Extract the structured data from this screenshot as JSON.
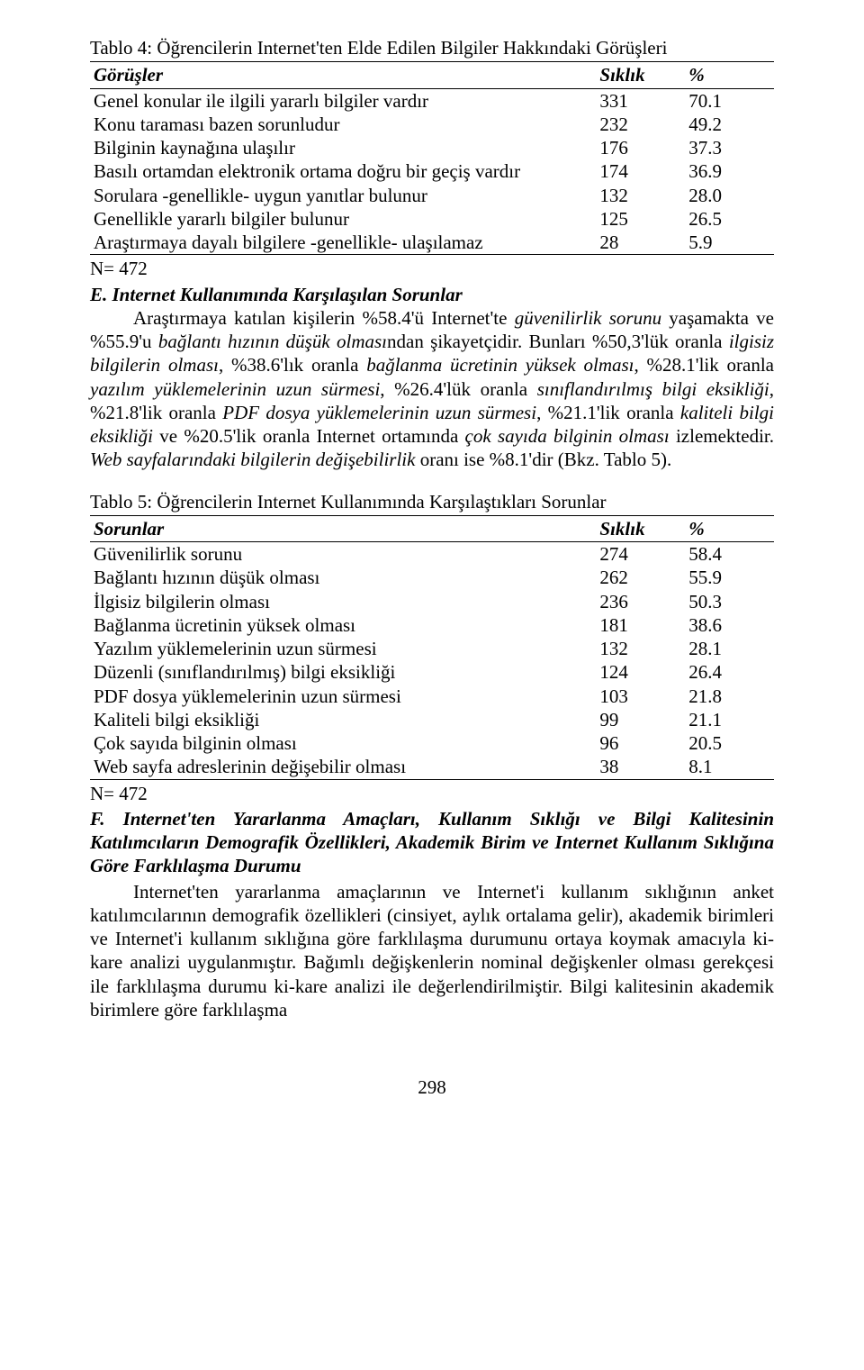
{
  "table4": {
    "title": "Tablo 4: Öğrencilerin Internet'ten Elde Edilen Bilgiler Hakkındaki Görüşleri",
    "header": {
      "col1": "Görüşler",
      "col2": "Sıklık",
      "col3": "%"
    },
    "rows": [
      {
        "label": "Genel konular ile ilgili yararlı bilgiler vardır",
        "freq": "331",
        "pct": "70.1"
      },
      {
        "label": "Konu taraması bazen sorunludur",
        "freq": "232",
        "pct": "49.2"
      },
      {
        "label": "Bilginin kaynağına ulaşılır",
        "freq": "176",
        "pct": "37.3"
      },
      {
        "label": "Basılı ortamdan elektronik ortama doğru bir geçiş vardır",
        "freq": "174",
        "pct": "36.9"
      },
      {
        "label": "Sorulara -genellikle- uygun yanıtlar bulunur",
        "freq": "132",
        "pct": "28.0"
      },
      {
        "label": "Genellikle yararlı bilgiler bulunur",
        "freq": "125",
        "pct": "26.5"
      },
      {
        "label": "Araştırmaya dayalı bilgilere -genellikle- ulaşılamaz",
        "freq": "28",
        "pct": "5.9"
      }
    ],
    "note": "N= 472"
  },
  "sectionE": {
    "heading": "E. Internet Kullanımında Karşılaşılan Sorunlar",
    "p1a": "Araştırmaya katılan kişilerin %58.4'ü Internet'te ",
    "p1b": "güvenilirlik sorunu",
    "p1c": " yaşamakta ve %55.9'u ",
    "p1d": "bağlantı hızının düşük olması",
    "p1e": "ndan şikayetçidir. Bunları %50,3'lük oranla ",
    "p1f": "ilgisiz bilgilerin olması",
    "p1g": ", %38.6'lık oranla ",
    "p1h": "bağlanma ücretinin yüksek olması",
    "p1i": ", %28.1'lik oranla ",
    "p1j": "yazılım yüklemelerinin uzun sürmesi",
    "p1k": ", %26.4'lük oranla ",
    "p1l": "sınıflandırılmış bilgi eksikliği",
    "p1m": ", %21.8'lik oranla ",
    "p1n": "PDF dosya yüklemelerinin uzun sürmesi",
    "p1o": ", %21.1'lik oranla ",
    "p1p": "kaliteli bilgi eksikliği",
    "p1q": " ve %20.5'lik oranla Internet ortamında ",
    "p1r": "çok sayıda bilginin olması",
    "p1s": " izlemektedir. ",
    "p1t": "Web sayfalarındaki bilgilerin değişebilirlik",
    "p1u": " oranı ise %8.1'dir (Bkz. Tablo 5)."
  },
  "table5": {
    "title": "Tablo 5: Öğrencilerin Internet Kullanımında Karşılaştıkları Sorunlar",
    "header": {
      "col1": "Sorunlar",
      "col2": "Sıklık",
      "col3": "%"
    },
    "rows": [
      {
        "label": "Güvenilirlik sorunu",
        "freq": "274",
        "pct": "58.4"
      },
      {
        "label": "Bağlantı hızının düşük olması",
        "freq": "262",
        "pct": "55.9"
      },
      {
        "label": "İlgisiz bilgilerin olması",
        "freq": "236",
        "pct": "50.3"
      },
      {
        "label": "Bağlanma ücretinin yüksek olması",
        "freq": "181",
        "pct": "38.6"
      },
      {
        "label": "Yazılım yüklemelerinin uzun sürmesi",
        "freq": "132",
        "pct": "28.1"
      },
      {
        "label": "Düzenli (sınıflandırılmış) bilgi eksikliği",
        "freq": "124",
        "pct": "26.4"
      },
      {
        "label": "PDF dosya yüklemelerinin uzun sürmesi",
        "freq": "103",
        "pct": "21.8"
      },
      {
        "label": "Kaliteli bilgi eksikliği",
        "freq": "99",
        "pct": "21.1"
      },
      {
        "label": "Çok sayıda bilginin olması",
        "freq": "96",
        "pct": "20.5"
      },
      {
        "label": "Web sayfa adreslerinin değişebilir olması",
        "freq": "38",
        "pct": "8.1"
      }
    ],
    "note": "N= 472"
  },
  "sectionF": {
    "heading": "F. Internet'ten Yararlanma Amaçları, Kullanım Sıklığı ve Bilgi Kalitesinin Katılımcıların Demografik Özellikleri, Akademik Birim ve Internet Kullanım Sıklığına Göre Farklılaşma Durumu",
    "p1": "Internet'ten yararlanma amaçlarının ve Internet'i kullanım sıklığının anket katılımcılarının demografik özellikleri (cinsiyet, aylık ortalama gelir), akademik birimleri ve Internet'i kullanım sıklığına göre farklılaşma durumunu ortaya koymak amacıyla ki-kare analizi uygulanmıştır. Bağımlı değişkenlerin nominal değişkenler olması gerekçesi ile farklılaşma durumu ki-kare analizi ile değerlendirilmiştir. Bilgi kalitesinin akademik birimlere göre farklılaşma"
  },
  "pageNumber": "298"
}
